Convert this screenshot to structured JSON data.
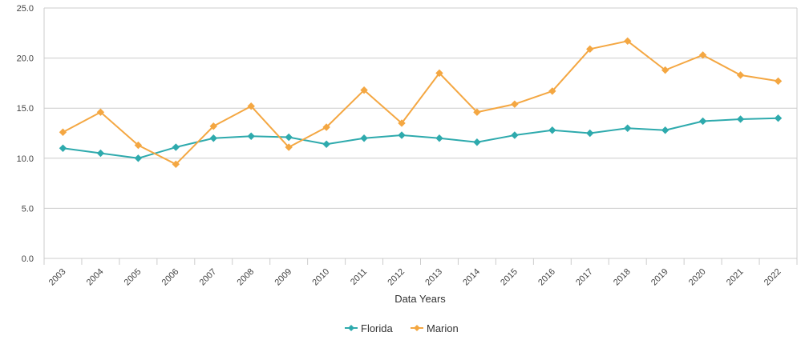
{
  "chart_data": {
    "type": "line",
    "title": "",
    "xlabel": "Data Years",
    "ylabel": "",
    "categories": [
      "2003",
      "2004",
      "2005",
      "2006",
      "2007",
      "2008",
      "2009",
      "2010",
      "2011",
      "2012",
      "2013",
      "2014",
      "2015",
      "2016",
      "2017",
      "2018",
      "2019",
      "2020",
      "2021",
      "2022"
    ],
    "ylim": [
      0,
      25
    ],
    "yticks": [
      "0.0",
      "5.0",
      "10.0",
      "15.0",
      "20.0",
      "25.0"
    ],
    "grid": true,
    "legend_position": "bottom-center",
    "series": [
      {
        "name": "Florida",
        "color": "#2eaaad",
        "marker": "diamond",
        "values": [
          11.0,
          10.5,
          10.0,
          11.1,
          12.0,
          12.2,
          12.1,
          11.4,
          12.0,
          12.3,
          12.0,
          11.6,
          12.3,
          12.8,
          12.5,
          13.0,
          12.8,
          13.7,
          13.9,
          14.0
        ]
      },
      {
        "name": "Marion",
        "color": "#f4a742",
        "marker": "diamond",
        "values": [
          12.6,
          14.6,
          11.3,
          9.4,
          13.2,
          15.2,
          11.1,
          13.1,
          16.8,
          13.5,
          18.5,
          14.6,
          15.4,
          16.7,
          20.9,
          21.7,
          18.8,
          20.3,
          18.3,
          17.7
        ]
      }
    ]
  }
}
